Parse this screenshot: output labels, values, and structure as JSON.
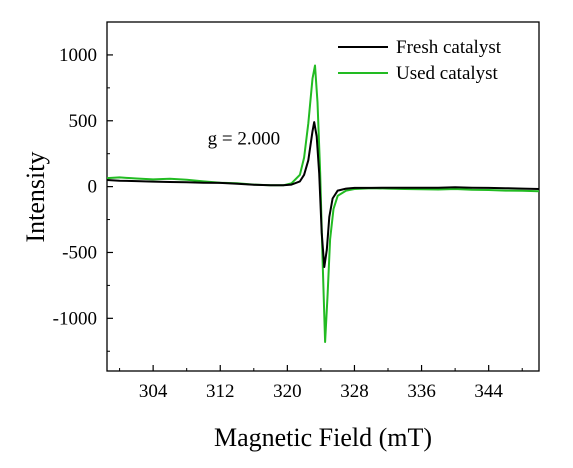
{
  "chart_data": {
    "type": "line",
    "xlabel": "Magnetic Field (mT)",
    "ylabel": "Intensity",
    "xlim": [
      298.5,
      350
    ],
    "ylim": [
      -1400,
      1250
    ],
    "xticks": [
      304,
      312,
      320,
      328,
      336,
      344
    ],
    "yticks": [
      -1000,
      -500,
      0,
      500,
      1000
    ],
    "grid": false,
    "legend_position": "top-right",
    "annotations": [
      {
        "text": "g = 2.000",
        "x": 310.5,
        "y": 320
      }
    ],
    "series": [
      {
        "name": "Fresh catalyst",
        "color": "#000000",
        "x": [
          298.5,
          300,
          302,
          304,
          306,
          308,
          310,
          312,
          314,
          316,
          318,
          319.5,
          320.5,
          321.5,
          322,
          322.5,
          323,
          323.2,
          323.5,
          323.8,
          324.1,
          324.4,
          324.7,
          325,
          325.4,
          326,
          327,
          328,
          330,
          332,
          334,
          336,
          338,
          340,
          342,
          344,
          346,
          348,
          350
        ],
        "values": [
          50,
          45,
          42,
          38,
          35,
          33,
          30,
          28,
          22,
          14,
          10,
          10,
          15,
          40,
          90,
          200,
          420,
          490,
          380,
          100,
          -350,
          -610,
          -480,
          -230,
          -90,
          -30,
          -15,
          -10,
          -10,
          -8,
          -8,
          -8,
          -8,
          -5,
          -8,
          -10,
          -12,
          -15,
          -18
        ]
      },
      {
        "name": "Used catalyst",
        "color": "#22bb22",
        "x": [
          298.5,
          300,
          302,
          304,
          306,
          308,
          310,
          312,
          314,
          316,
          318,
          319.5,
          320.5,
          321.5,
          322,
          322.5,
          323,
          323.3,
          323.6,
          323.9,
          324.2,
          324.5,
          324.8,
          325.1,
          325.5,
          326,
          327,
          328,
          330,
          332,
          334,
          336,
          338,
          340,
          342,
          344,
          346,
          348,
          350
        ],
        "values": [
          65,
          70,
          62,
          55,
          60,
          52,
          40,
          30,
          25,
          15,
          10,
          10,
          25,
          90,
          220,
          480,
          820,
          920,
          640,
          120,
          -560,
          -1180,
          -820,
          -400,
          -170,
          -70,
          -30,
          -18,
          -12,
          -15,
          -18,
          -20,
          -22,
          -18,
          -24,
          -26,
          -30,
          -32,
          -35
        ]
      }
    ]
  }
}
